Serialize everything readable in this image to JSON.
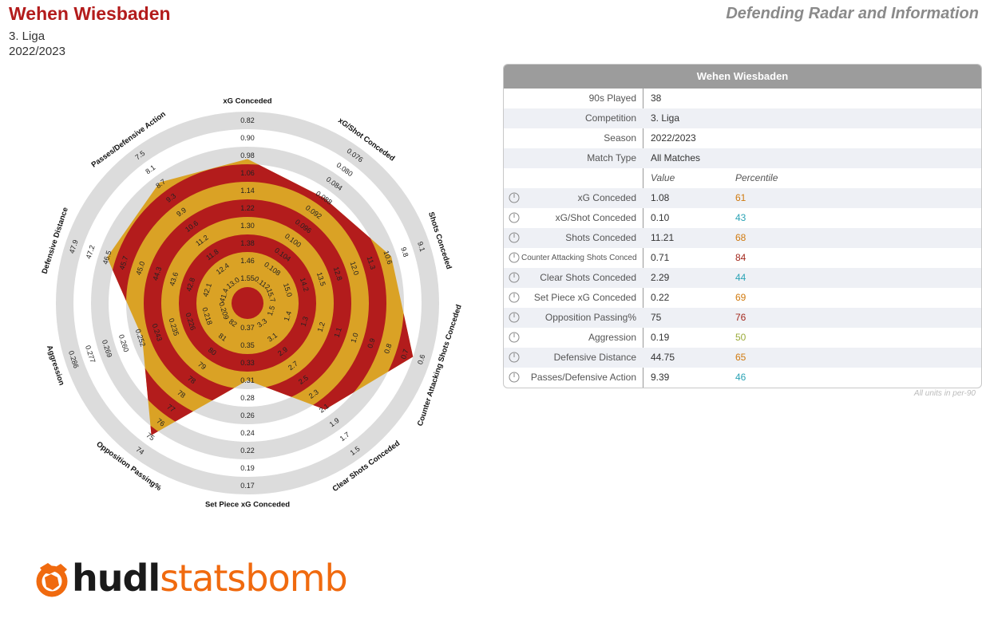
{
  "header": {
    "team": "Wehen Wiesbaden",
    "competition": "3. Liga",
    "season": "2022/2023",
    "report_title": "Defending Radar and Information"
  },
  "colors": {
    "team_red": "#b31c1c",
    "gold": "#daa225",
    "ring_grey": "#dcdcdc",
    "brand_orange": "#f06a0f"
  },
  "info": {
    "title": "Wehen Wiesbaden",
    "meta": [
      {
        "label": "90s Played",
        "value": "38"
      },
      {
        "label": "Competition",
        "value": "3. Liga"
      },
      {
        "label": "Season",
        "value": "2022/2023"
      },
      {
        "label": "Match Type",
        "value": "All Matches"
      }
    ],
    "col_value": "Value",
    "col_percentile": "Percentile",
    "metrics": [
      {
        "label": "xG Conceded",
        "value": "1.08",
        "percentile": "61",
        "pct_color": "#d07a0e",
        "icon": "dial-icon"
      },
      {
        "label": "xG/Shot Conceded",
        "value": "0.10",
        "percentile": "43",
        "pct_color": "#2aa3b5",
        "icon": "dial-icon"
      },
      {
        "label": "Shots Conceded",
        "value": "11.21",
        "percentile": "68",
        "pct_color": "#d07a0e",
        "icon": "dial-icon"
      },
      {
        "label": "Counter Attacking Shots Conceded",
        "value": "0.71",
        "percentile": "84",
        "pct_color": "#a3271c",
        "icon": "dial-icon"
      },
      {
        "label": "Clear Shots Conceded",
        "value": "2.29",
        "percentile": "44",
        "pct_color": "#2aa3b5",
        "icon": "dial-icon"
      },
      {
        "label": "Set Piece xG Conceded",
        "value": "0.22",
        "percentile": "69",
        "pct_color": "#d07a0e",
        "icon": "dial-icon"
      },
      {
        "label": "Opposition Passing%",
        "value": "75",
        "percentile": "76",
        "pct_color": "#a3271c",
        "icon": "dial-icon"
      },
      {
        "label": "Aggression",
        "value": "0.19",
        "percentile": "50",
        "pct_color": "#9aab3a",
        "icon": "dial-icon"
      },
      {
        "label": "Defensive Distance",
        "value": "44.75",
        "percentile": "65",
        "pct_color": "#d07a0e",
        "icon": "dial-icon"
      },
      {
        "label": "Passes/Defensive Action",
        "value": "9.39",
        "percentile": "46",
        "pct_color": "#2aa3b5",
        "icon": "dial-icon"
      }
    ],
    "units_note": "All units in per-90"
  },
  "chart_data": {
    "type": "radar",
    "axes": [
      {
        "name": "xG Conceded",
        "ticks": [
          "0.82",
          "0.90",
          "0.98",
          "1.06",
          "1.14",
          "1.22",
          "1.30",
          "1.38",
          "1.46",
          "1.55"
        ],
        "value": 1.08
      },
      {
        "name": "xG/Shot Conceded",
        "ticks": [
          "0.076",
          "0.080",
          "0.084",
          "0.088",
          "0.092",
          "0.096",
          "0.100",
          "0.104",
          "0.108",
          "0.112"
        ],
        "value": 0.1
      },
      {
        "name": "Shots Conceded",
        "ticks": [
          "9.1",
          "9.8",
          "10.6",
          "11.3",
          "12.0",
          "12.8",
          "13.5",
          "14.2",
          "15.0",
          "15.7"
        ],
        "value": 11.21
      },
      {
        "name": "Counter Attacking Shots Conceded",
        "ticks": [
          "0.6",
          "0.7",
          "0.8",
          "0.9",
          "1.0",
          "1.1",
          "1.2",
          "1.3",
          "1.4",
          "1.5"
        ],
        "value": 0.71
      },
      {
        "name": "Clear Shots Conceded",
        "ticks": [
          "1.5",
          "1.7",
          "1.9",
          "2.1",
          "2.3",
          "2.5",
          "2.7",
          "2.9",
          "3.1",
          "3.3"
        ],
        "value": 2.29
      },
      {
        "name": "Set Piece xG Conceded",
        "ticks": [
          "0.17",
          "0.19",
          "0.22",
          "0.24",
          "0.26",
          "0.28",
          "0.31",
          "0.33",
          "0.35",
          "0.37"
        ],
        "value": 0.22
      },
      {
        "name": "Opposition Passing%",
        "ticks": [
          "74",
          "75",
          "76",
          "77",
          "78",
          "78",
          "79",
          "80",
          "81",
          "82"
        ],
        "value": 75
      },
      {
        "name": "Aggression",
        "ticks": [
          "0.286",
          "0.277",
          "0.269",
          "0.260",
          "0.252",
          "0.243",
          "0.235",
          "0.226",
          "0.218",
          "0.209"
        ],
        "value": 0.19
      },
      {
        "name": "Defensive Distance",
        "ticks": [
          "47.9",
          "47.2",
          "46.5",
          "45.7",
          "45.0",
          "44.3",
          "43.6",
          "42.8",
          "42.1",
          "41.4"
        ],
        "value": 44.75
      },
      {
        "name": "Passes/Defensive Action",
        "ticks": [
          "7.5",
          "8.1",
          "8.7",
          "9.3",
          "9.9",
          "10.6",
          "11.2",
          "11.8",
          "12.4",
          "13.0"
        ],
        "value": 9.39
      }
    ],
    "plotted_level": [
      7.3,
      6.5,
      7.7,
      9.0,
      6.6,
      3.5,
      8.4,
      5.4,
      7.5,
      7.6
    ]
  },
  "brand": {
    "word1": "hudl",
    "word2": "statsbomb"
  }
}
